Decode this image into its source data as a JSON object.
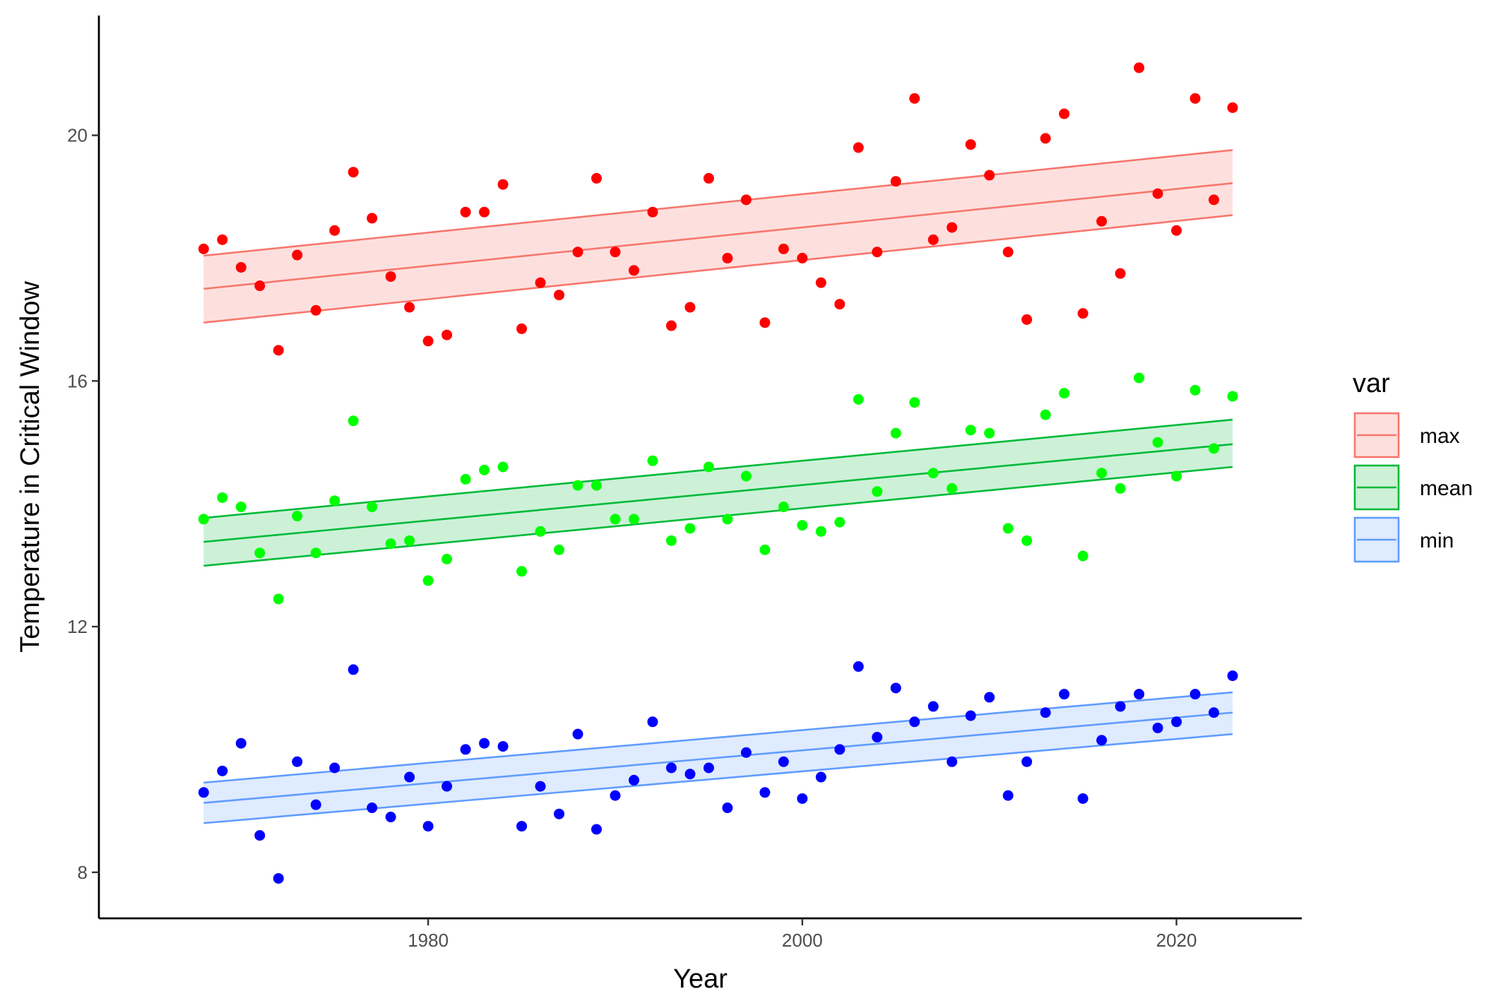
{
  "chart_data": {
    "type": "scatter",
    "title": "",
    "xlabel": "Year",
    "ylabel": "Temperature in Critical Window",
    "xlim": [
      1962.4,
      2026.7
    ],
    "ylim": [
      7.25,
      21.95
    ],
    "x_ticks": [
      1980,
      2000,
      2020
    ],
    "y_ticks": [
      8,
      12,
      16,
      20
    ],
    "grid": false,
    "legend": {
      "title": "var",
      "position": "right"
    },
    "series": [
      {
        "name": "max",
        "point_color": "#FF0000",
        "line_color": "#F8766D",
        "ribbon_color": "#FDE0DE",
        "x": [
          1968,
          1969,
          1970,
          1971,
          1972,
          1973,
          1974,
          1975,
          1976,
          1977,
          1978,
          1979,
          1980,
          1981,
          1982,
          1983,
          1984,
          1985,
          1986,
          1987,
          1988,
          1989,
          1990,
          1991,
          1992,
          1993,
          1994,
          1995,
          1996,
          1997,
          1998,
          1999,
          2000,
          2001,
          2002,
          2003,
          2004,
          2005,
          2006,
          2007,
          2008,
          2009,
          2010,
          2011,
          2012,
          2013,
          2014,
          2015,
          2016,
          2017,
          2018,
          2019,
          2020,
          2021,
          2022,
          2023
        ],
        "y": [
          18.15,
          18.3,
          17.85,
          17.55,
          16.5,
          18.05,
          17.15,
          18.45,
          19.4,
          18.65,
          17.7,
          17.2,
          16.65,
          16.75,
          18.75,
          18.75,
          19.2,
          16.85,
          17.6,
          17.4,
          18.1,
          19.3,
          18.1,
          17.8,
          18.75,
          16.9,
          17.2,
          19.3,
          18.0,
          18.95,
          16.95,
          18.15,
          18.0,
          17.6,
          17.25,
          19.8,
          18.1,
          19.25,
          20.6,
          18.3,
          18.5,
          19.85,
          19.35,
          18.1,
          17.0,
          19.95,
          20.35,
          17.1,
          18.6,
          17.75,
          21.1,
          19.05,
          18.45,
          20.6,
          18.95,
          20.45
        ],
        "trend": {
          "x": [
            1968,
            2023
          ],
          "fit": [
            17.5,
            19.22
          ],
          "lower": [
            16.95,
            18.7
          ],
          "upper": [
            18.04,
            19.76
          ]
        }
      },
      {
        "name": "mean",
        "point_color": "#00FF00",
        "line_color": "#00BA38",
        "ribbon_color": "#CCF1D7",
        "x": [
          1968,
          1969,
          1970,
          1971,
          1972,
          1973,
          1974,
          1975,
          1976,
          1977,
          1978,
          1979,
          1980,
          1981,
          1982,
          1983,
          1984,
          1985,
          1986,
          1987,
          1988,
          1989,
          1990,
          1991,
          1992,
          1993,
          1994,
          1995,
          1996,
          1997,
          1998,
          1999,
          2000,
          2001,
          2002,
          2003,
          2004,
          2005,
          2006,
          2007,
          2008,
          2009,
          2010,
          2011,
          2012,
          2013,
          2014,
          2015,
          2016,
          2017,
          2018,
          2019,
          2020,
          2021,
          2022,
          2023
        ],
        "y": [
          13.75,
          14.1,
          13.95,
          13.2,
          12.45,
          13.8,
          13.2,
          14.05,
          15.35,
          13.95,
          13.35,
          13.4,
          12.75,
          13.1,
          14.4,
          14.55,
          14.6,
          12.9,
          13.55,
          13.25,
          14.3,
          14.3,
          13.75,
          13.75,
          14.7,
          13.4,
          13.6,
          14.6,
          13.75,
          14.45,
          13.25,
          13.95,
          13.65,
          13.55,
          13.7,
          15.7,
          14.2,
          15.15,
          15.65,
          14.5,
          14.25,
          15.2,
          15.15,
          13.6,
          13.4,
          15.45,
          15.8,
          13.15,
          14.5,
          14.25,
          16.05,
          15.0,
          14.45,
          15.85,
          14.9,
          15.75
        ],
        "trend": {
          "x": [
            1968,
            2023
          ],
          "fit": [
            13.38,
            14.97
          ],
          "lower": [
            12.99,
            14.6
          ],
          "upper": [
            13.77,
            15.37
          ]
        }
      },
      {
        "name": "min",
        "point_color": "#0000FF",
        "line_color": "#619CFF",
        "ribbon_color": "#DFEBFF",
        "x": [
          1968,
          1969,
          1970,
          1971,
          1972,
          1973,
          1974,
          1975,
          1976,
          1977,
          1978,
          1979,
          1980,
          1981,
          1982,
          1983,
          1984,
          1985,
          1986,
          1987,
          1988,
          1989,
          1990,
          1991,
          1992,
          1993,
          1994,
          1995,
          1996,
          1997,
          1998,
          1999,
          2000,
          2001,
          2002,
          2003,
          2004,
          2005,
          2006,
          2007,
          2008,
          2009,
          2010,
          2011,
          2012,
          2013,
          2014,
          2015,
          2016,
          2017,
          2018,
          2019,
          2020,
          2021,
          2022,
          2023
        ],
        "y": [
          9.3,
          9.65,
          10.1,
          8.6,
          7.9,
          9.8,
          9.1,
          9.7,
          11.3,
          9.05,
          8.9,
          9.55,
          8.75,
          9.4,
          10.0,
          10.1,
          10.05,
          8.75,
          9.4,
          8.95,
          10.25,
          8.7,
          9.25,
          9.5,
          10.45,
          9.7,
          9.6,
          9.7,
          9.05,
          9.95,
          9.3,
          9.8,
          9.2,
          9.55,
          10.0,
          11.35,
          10.2,
          11.0,
          10.45,
          10.7,
          9.8,
          10.55,
          10.85,
          9.25,
          9.8,
          10.6,
          10.9,
          9.2,
          10.15,
          10.7,
          10.9,
          10.35,
          10.45,
          10.9,
          10.6,
          11.2
        ],
        "trend": {
          "x": [
            1968,
            2023
          ],
          "fit": [
            9.13,
            10.6
          ],
          "lower": [
            8.8,
            10.25
          ],
          "upper": [
            9.46,
            10.93
          ]
        }
      }
    ]
  }
}
